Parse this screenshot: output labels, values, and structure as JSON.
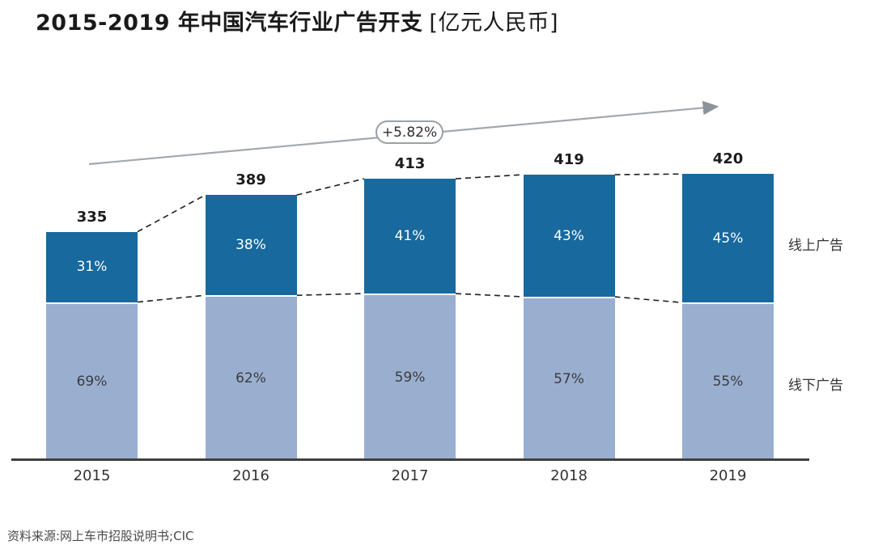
{
  "header": {
    "title_bold": "2015-2019 年中国汽车行业广告开支",
    "title_unit": "[亿元人民币]"
  },
  "chart_data": {
    "type": "bar",
    "subtype": "stacked",
    "title": "2015-2019 年中国汽车行业广告开支 [亿元人民币]",
    "unit": "亿元人民币",
    "categories": [
      "2015",
      "2016",
      "2017",
      "2018",
      "2019"
    ],
    "totals": [
      335,
      389,
      413,
      419,
      420
    ],
    "series": [
      {
        "name": "线上广告",
        "pct": [
          31,
          38,
          41,
          43,
          45
        ],
        "color": "#17699e"
      },
      {
        "name": "线下广告",
        "pct": [
          69,
          62,
          59,
          57,
          55
        ],
        "color": "#9aafd0"
      }
    ],
    "annotation": "+5.82%",
    "series_labels": {
      "online": "线上广告",
      "offline": "线下广告"
    },
    "layout": {
      "grid": false,
      "legend_position": "right",
      "axis_color": "#3f3f3f",
      "arrow_color": "#a3a8af",
      "dash_color": "#1f1f1f"
    }
  },
  "footer": {
    "source": "资料来源:网上车市招股说明书;CIC"
  }
}
